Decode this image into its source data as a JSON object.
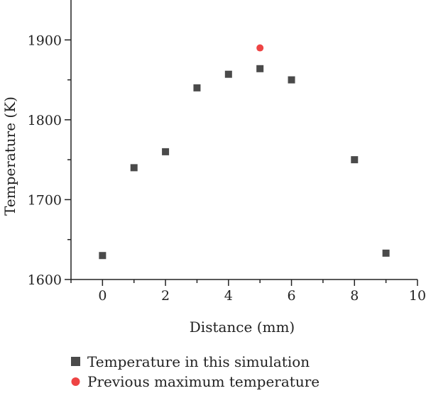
{
  "chart_data": {
    "type": "scatter",
    "title": "",
    "xlabel": "Distance (mm)",
    "ylabel": "Temperature (K)",
    "xlim": [
      -1,
      10
    ],
    "ylim": [
      1600,
      1950
    ],
    "xticks": [
      0,
      2,
      4,
      6,
      8,
      10
    ],
    "yticks": [
      1600,
      1700,
      1800,
      1900
    ],
    "xtick_labels": [
      "0",
      "2",
      "4",
      "6",
      "8",
      "10"
    ],
    "ytick_labels": [
      "1600",
      "1700",
      "1800",
      "1900"
    ],
    "grid": false,
    "legend_position": "bottom",
    "series": [
      {
        "name": "Temperature in this simulation",
        "marker": "square",
        "color": "#4a4a4a",
        "points": [
          {
            "x": 0,
            "y": 1630
          },
          {
            "x": 1,
            "y": 1740
          },
          {
            "x": 2,
            "y": 1760
          },
          {
            "x": 3,
            "y": 1840
          },
          {
            "x": 4,
            "y": 1857
          },
          {
            "x": 5,
            "y": 1864
          },
          {
            "x": 6,
            "y": 1850
          },
          {
            "x": 8,
            "y": 1750
          },
          {
            "x": 9,
            "y": 1633
          }
        ]
      },
      {
        "name": "Previous maximum temperature",
        "marker": "circle",
        "color": "#ee4444",
        "points": [
          {
            "x": 5,
            "y": 1890
          }
        ]
      }
    ]
  }
}
